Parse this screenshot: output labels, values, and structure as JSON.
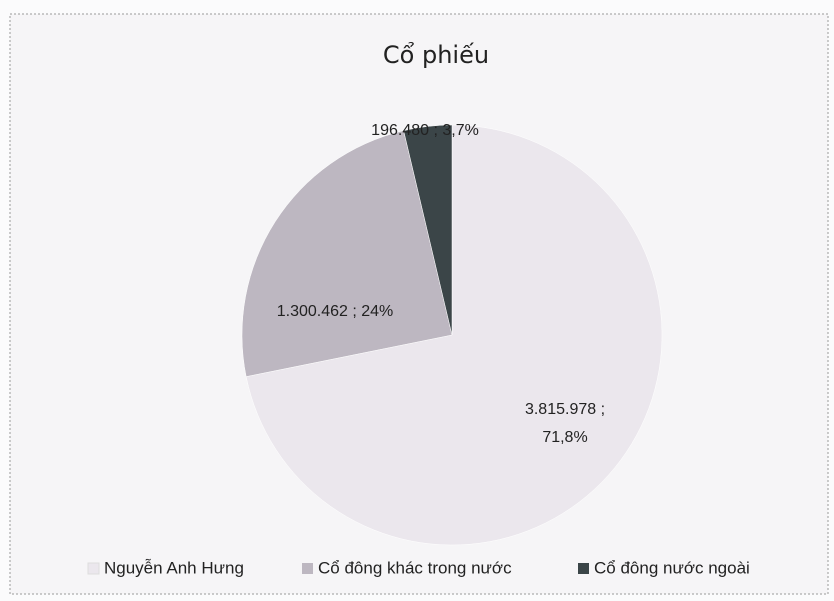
{
  "chart_data": {
    "type": "pie",
    "title": "Cổ phiếu",
    "categories": [
      "Nguyễn Anh Hưng",
      "Cổ đông khác trong nước",
      "Cổ đông nước ngoài"
    ],
    "values": [
      3815978,
      1300462,
      196480
    ],
    "value_labels": [
      "3.815.978 ; 71,8%",
      "1.300.462 ; 24%",
      "196.480 ; 3,7%"
    ],
    "colors": [
      "#ebe7ed",
      "#bdb7c1",
      "#3b4548"
    ],
    "legend": "bottom"
  }
}
